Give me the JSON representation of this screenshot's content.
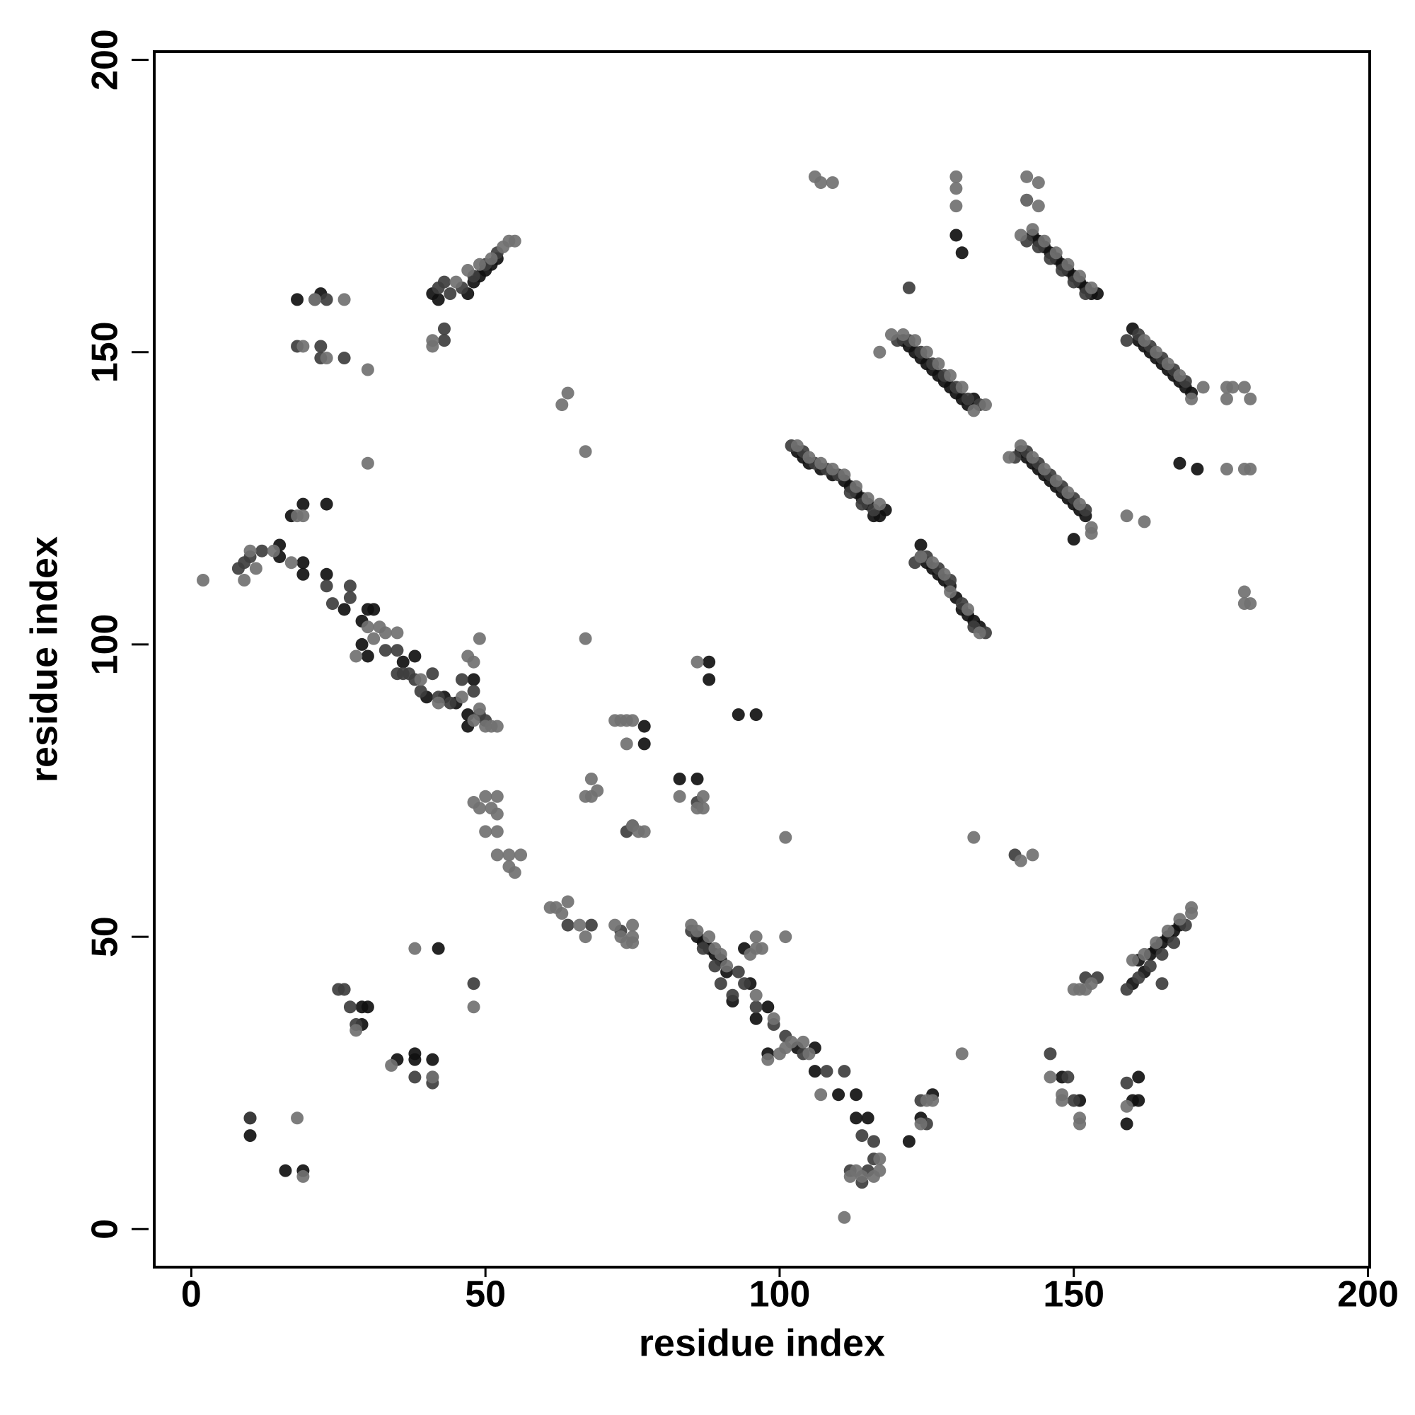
{
  "chart_data": {
    "type": "scatter",
    "xlabel": "residue index",
    "ylabel": "residue index",
    "xlim": [
      -6.3,
      200.3
    ],
    "ylim": [
      -6.5,
      201.4
    ],
    "xticks": [
      0,
      50,
      100,
      150,
      200
    ],
    "yticks": [
      0,
      50,
      100,
      150,
      200
    ],
    "series": [
      {
        "color": "#111111",
        "x": [
          103,
          104,
          105,
          107,
          109,
          111,
          112,
          113,
          114,
          115,
          116,
          117,
          118,
          121,
          122,
          123,
          124,
          125,
          126,
          127,
          128,
          129,
          130,
          131,
          132,
          133,
          143,
          144,
          145,
          146,
          147,
          148,
          149,
          150,
          151,
          152,
          153,
          154,
          160,
          161,
          162,
          163,
          164,
          165,
          166,
          167,
          168,
          169,
          170,
          141,
          142,
          143,
          144,
          145,
          146,
          147,
          148,
          149,
          150,
          151,
          152,
          150,
          124,
          124,
          125,
          126,
          127,
          128,
          129,
          130,
          131,
          132,
          133,
          134,
          160,
          161,
          162,
          163,
          164,
          165,
          166,
          167,
          168,
          41,
          42,
          47,
          48,
          49,
          50,
          51,
          52,
          15,
          15,
          19,
          19,
          23,
          26,
          29,
          30,
          31,
          30,
          36,
          38,
          40,
          43,
          45,
          47,
          48,
          47,
          18,
          22,
          23,
          19,
          17,
          29,
          86,
          87,
          88,
          89,
          90,
          91,
          92,
          94,
          95,
          96,
          98,
          98,
          103,
          106,
          106,
          110,
          113,
          113,
          115,
          122,
          124,
          126,
          10,
          10,
          16,
          19,
          29,
          30,
          29,
          35,
          38,
          38,
          41,
          42,
          83,
          86,
          88,
          88,
          77,
          77,
          93,
          96,
          130,
          131,
          171,
          168,
          142,
          151,
          159,
          161,
          161,
          148,
          160
        ],
        "values": [
          133,
          132,
          131,
          130,
          129,
          128,
          127,
          126,
          125,
          124,
          122,
          122,
          123,
          152,
          151,
          150,
          149,
          148,
          147,
          146,
          145,
          144,
          143,
          142,
          141,
          142,
          170,
          169,
          168,
          167,
          166,
          165,
          164,
          163,
          162,
          161,
          160,
          160,
          154,
          152,
          151,
          150,
          149,
          148,
          147,
          146,
          145,
          144,
          143,
          133,
          132,
          131,
          130,
          129,
          128,
          127,
          126,
          125,
          124,
          123,
          122,
          118,
          117,
          115,
          114,
          113,
          112,
          111,
          110,
          108,
          106,
          105,
          104,
          103,
          42,
          46,
          44,
          47,
          48,
          49,
          50,
          51,
          52,
          160,
          159,
          160,
          162,
          163,
          164,
          165,
          166,
          117,
          115,
          114,
          112,
          112,
          106,
          104,
          106,
          106,
          98,
          97,
          98,
          91,
          91,
          90,
          88,
          94,
          86,
          159,
          160,
          124,
          124,
          122,
          100,
          50,
          49,
          48,
          47,
          46,
          44,
          39,
          48,
          42,
          36,
          38,
          30,
          31,
          31,
          27,
          23,
          23,
          19,
          19,
          15,
          19,
          23,
          19,
          16,
          10,
          10,
          38,
          38,
          35,
          29,
          30,
          29,
          29,
          48,
          77,
          77,
          97,
          94,
          86,
          83,
          88,
          88,
          170,
          167,
          130,
          131,
          176,
          22,
          18,
          22,
          26,
          26,
          22
        ]
      },
      {
        "color": "#3e3e3e",
        "x": [
          102,
          104,
          106,
          108,
          110,
          112,
          114,
          116,
          120,
          122,
          124,
          126,
          128,
          130,
          132,
          134,
          142,
          144,
          146,
          148,
          150,
          152,
          159,
          161,
          163,
          165,
          167,
          169,
          140,
          142,
          144,
          146,
          148,
          150,
          152,
          123,
          125,
          127,
          129,
          131,
          133,
          135,
          159,
          161,
          163,
          165,
          167,
          169,
          165,
          154,
          42,
          43,
          44,
          46,
          48,
          50,
          52,
          43,
          43,
          122,
          8,
          9,
          10,
          12,
          21,
          18,
          22,
          22,
          26,
          27,
          27,
          24,
          33,
          35,
          37,
          38,
          39,
          41,
          42,
          44,
          46,
          48,
          49,
          50,
          23,
          35,
          36,
          85,
          87,
          89,
          90,
          92,
          93,
          94,
          96,
          99,
          101,
          104,
          108,
          111,
          114,
          116,
          112,
          114,
          115,
          125,
          124,
          116,
          26,
          25,
          27,
          28,
          38,
          41,
          41,
          48,
          64,
          68,
          73,
          86,
          74,
          75,
          10,
          150,
          149,
          146,
          152,
          159,
          140,
          23
        ],
        "values": [
          134,
          133,
          131,
          130,
          129,
          126,
          124,
          123,
          152,
          152,
          150,
          148,
          146,
          144,
          142,
          141,
          169,
          168,
          166,
          164,
          162,
          160,
          152,
          153,
          151,
          149,
          147,
          145,
          132,
          133,
          131,
          129,
          127,
          125,
          123,
          114,
          115,
          113,
          111,
          107,
          103,
          102,
          41,
          43,
          45,
          47,
          49,
          52,
          42,
          43,
          161,
          162,
          160,
          161,
          163,
          165,
          167,
          154,
          152,
          161,
          113,
          114,
          115,
          116,
          159,
          151,
          151,
          149,
          149,
          110,
          108,
          107,
          99,
          95,
          95,
          94,
          92,
          95,
          91,
          90,
          94,
          92,
          88,
          87,
          110,
          99,
          95,
          51,
          48,
          45,
          42,
          40,
          44,
          42,
          38,
          35,
          33,
          30,
          27,
          27,
          16,
          12,
          10,
          8,
          10,
          18,
          22,
          15,
          41,
          41,
          38,
          35,
          26,
          26,
          25,
          42,
          52,
          52,
          51,
          73,
          68,
          69,
          19,
          22,
          26,
          30,
          43,
          25,
          64,
          159
        ]
      },
      {
        "color": "#717171",
        "x": [
          103,
          105,
          107,
          109,
          111,
          113,
          115,
          117,
          121,
          123,
          125,
          127,
          129,
          131,
          133,
          135,
          143,
          145,
          147,
          149,
          151,
          153,
          142,
          142,
          144,
          144,
          130,
          130,
          130,
          106,
          107,
          109,
          162,
          164,
          166,
          168,
          170,
          172,
          176,
          177,
          179,
          180,
          176,
          180,
          179,
          176,
          179,
          180,
          179,
          139,
          141,
          143,
          145,
          147,
          149,
          151,
          153,
          153,
          124,
          126,
          128,
          129,
          132,
          134,
          160,
          162,
          164,
          166,
          168,
          170,
          170,
          151,
          152,
          41,
          41,
          45,
          47,
          49,
          51,
          53,
          54,
          55,
          119,
          117,
          159,
          162,
          141,
          2,
          9,
          10,
          11,
          14,
          17,
          18,
          19,
          26,
          21,
          19,
          23,
          30,
          30,
          28,
          30,
          31,
          32,
          33,
          35,
          39,
          42,
          46,
          47,
          48,
          49,
          49,
          50,
          51,
          52,
          48,
          48,
          49,
          50,
          51,
          52,
          52,
          50,
          52,
          52,
          54,
          55,
          56,
          54,
          63,
          64,
          67,
          67,
          72,
          73,
          74,
          75,
          74,
          68,
          68,
          69,
          67,
          76,
          77,
          75,
          83,
          86,
          87,
          87,
          86,
          101,
          133,
          141,
          143,
          61,
          62,
          63,
          64,
          67,
          66,
          72,
          73,
          74,
          75,
          75,
          75,
          85,
          86,
          88,
          89,
          90,
          91,
          95,
          96,
          97,
          96,
          101,
          96,
          99,
          100,
          101,
          102,
          104,
          105,
          98,
          107,
          112,
          113,
          114,
          116,
          117,
          117,
          111,
          124,
          125,
          126,
          131,
          146,
          148,
          148,
          151,
          151,
          150,
          153,
          159,
          18,
          19,
          34,
          38,
          41,
          48,
          28
        ],
        "values": [
          134,
          132,
          131,
          130,
          129,
          127,
          125,
          124,
          153,
          152,
          150,
          148,
          146,
          144,
          140,
          141,
          171,
          169,
          167,
          165,
          163,
          161,
          180,
          176,
          179,
          175,
          180,
          178,
          175,
          180,
          179,
          179,
          152,
          150,
          148,
          146,
          142,
          144,
          144,
          144,
          144,
          142,
          142,
          130,
          130,
          130,
          109,
          107,
          107,
          132,
          134,
          132,
          130,
          128,
          126,
          124,
          120,
          119,
          115,
          114,
          112,
          109,
          106,
          102,
          46,
          47,
          49,
          51,
          53,
          54,
          55,
          41,
          41,
          151,
          152,
          162,
          164,
          165,
          166,
          168,
          169,
          169,
          153,
          150,
          122,
          121,
          170,
          111,
          111,
          116,
          113,
          116,
          114,
          122,
          122,
          159,
          159,
          151,
          149,
          147,
          131,
          98,
          103,
          101,
          103,
          102,
          102,
          94,
          90,
          91,
          98,
          97,
          101,
          89,
          86,
          86,
          86,
          87,
          73,
          72,
          74,
          72,
          74,
          71,
          68,
          68,
          64,
          62,
          61,
          64,
          64,
          141,
          143,
          133,
          101,
          87,
          87,
          87,
          87,
          83,
          77,
          74,
          75,
          74,
          68,
          68,
          69,
          74,
          72,
          74,
          72,
          97,
          67,
          67,
          63,
          64,
          55,
          55,
          54,
          56,
          50,
          52,
          52,
          50,
          49,
          49,
          50,
          52,
          52,
          51,
          50,
          48,
          47,
          45,
          47,
          48,
          48,
          50,
          50,
          40,
          36,
          30,
          31,
          32,
          32,
          30,
          29,
          23,
          9,
          10,
          9,
          9,
          10,
          12,
          2,
          18,
          22,
          22,
          30,
          26,
          23,
          22,
          19,
          18,
          41,
          42,
          21,
          19,
          9,
          28,
          48,
          26,
          38,
          34
        ]
      }
    ]
  }
}
